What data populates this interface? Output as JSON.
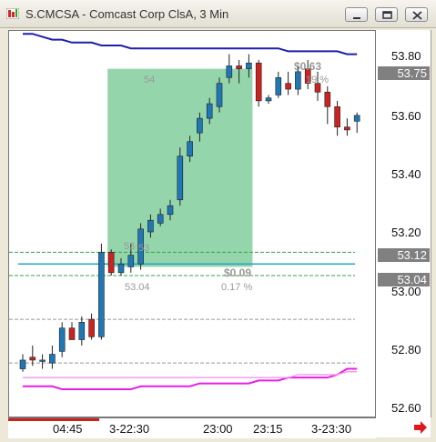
{
  "window": {
    "title": "S.CMCSA - Comcast Corp ClsA, 3 Min",
    "icon": "app-icon",
    "buttons": [
      "minimize-icon",
      "restore-icon",
      "close-icon"
    ]
  },
  "colors": {
    "up_candle": "#1f77b4",
    "down_candle": "#cc2222",
    "upper_band": "#1f1fa8",
    "lower_band": "#e61ee6",
    "lower_band_light": "#f3a0e8",
    "measure_box": "#8fd3a8",
    "price_tag_bg": "#808080",
    "hline_green": "#2aa84a",
    "hline_cyan": "#22a6c4"
  },
  "yaxis": {
    "labels": [
      "53.80",
      "53.60",
      "53.40",
      "53.20",
      "53.00",
      "52.80",
      "52.60"
    ],
    "tags": [
      "53.75",
      "53.12",
      "53.04"
    ]
  },
  "xaxis": {
    "labels": [
      "04:45",
      "3-22:30",
      "23:00",
      "23:15",
      "3-23:30"
    ]
  },
  "annotations": {
    "box_top": "54",
    "box_left_a": "53",
    "box_left_b": "53",
    "box_low": "53.04",
    "change_top": "$0.63",
    "pct_top": "19 %",
    "change_mid": "$0.09",
    "pct_mid": "0.17 %"
  },
  "chart_data": {
    "type": "candlestick",
    "title": "S.CMCSA - Comcast Corp ClsA, 3 Min",
    "ylim": [
      52.55,
      53.88
    ],
    "y_ticks": [
      53.8,
      53.6,
      53.4,
      53.2,
      53.0,
      52.8,
      52.6
    ],
    "x_ticks": [
      "04:45",
      "3-22:30",
      "23:00",
      "23:15",
      "3-23:30"
    ],
    "grid": false,
    "candles": [
      {
        "o": 52.72,
        "h": 52.77,
        "l": 52.71,
        "c": 52.75
      },
      {
        "o": 52.76,
        "h": 52.8,
        "l": 52.73,
        "c": 52.75
      },
      {
        "o": 52.75,
        "h": 52.77,
        "l": 52.72,
        "c": 52.75
      },
      {
        "o": 52.74,
        "h": 52.8,
        "l": 52.72,
        "c": 52.77
      },
      {
        "o": 52.78,
        "h": 52.88,
        "l": 52.76,
        "c": 52.86
      },
      {
        "o": 52.86,
        "h": 52.88,
        "l": 52.82,
        "c": 52.82
      },
      {
        "o": 52.82,
        "h": 52.9,
        "l": 52.8,
        "c": 52.88
      },
      {
        "o": 52.89,
        "h": 52.91,
        "l": 52.82,
        "c": 52.83
      },
      {
        "o": 52.83,
        "h": 53.15,
        "l": 52.82,
        "c": 53.12
      },
      {
        "o": 53.12,
        "h": 53.13,
        "l": 53.04,
        "c": 53.05
      },
      {
        "o": 53.05,
        "h": 53.1,
        "l": 53.04,
        "c": 53.08
      },
      {
        "o": 53.07,
        "h": 53.15,
        "l": 53.05,
        "c": 53.11
      },
      {
        "o": 53.08,
        "h": 53.22,
        "l": 53.06,
        "c": 53.2
      },
      {
        "o": 53.19,
        "h": 53.25,
        "l": 53.17,
        "c": 53.23
      },
      {
        "o": 53.22,
        "h": 53.27,
        "l": 53.21,
        "c": 53.25
      },
      {
        "o": 53.25,
        "h": 53.3,
        "l": 53.23,
        "c": 53.28
      },
      {
        "o": 53.3,
        "h": 53.48,
        "l": 53.28,
        "c": 53.45
      },
      {
        "o": 53.45,
        "h": 53.52,
        "l": 53.43,
        "c": 53.5
      },
      {
        "o": 53.53,
        "h": 53.6,
        "l": 53.5,
        "c": 53.58
      },
      {
        "o": 53.58,
        "h": 53.65,
        "l": 53.56,
        "c": 53.63
      },
      {
        "o": 53.62,
        "h": 53.72,
        "l": 53.6,
        "c": 53.7
      },
      {
        "o": 53.72,
        "h": 53.8,
        "l": 53.7,
        "c": 53.76
      },
      {
        "o": 53.76,
        "h": 53.78,
        "l": 53.7,
        "c": 53.75
      },
      {
        "o": 53.75,
        "h": 53.8,
        "l": 53.72,
        "c": 53.77
      },
      {
        "o": 53.77,
        "h": 53.78,
        "l": 53.62,
        "c": 53.64
      },
      {
        "o": 53.64,
        "h": 53.66,
        "l": 53.63,
        "c": 53.65
      },
      {
        "o": 53.66,
        "h": 53.74,
        "l": 53.65,
        "c": 53.72
      },
      {
        "o": 53.7,
        "h": 53.74,
        "l": 53.66,
        "c": 53.68
      },
      {
        "o": 53.68,
        "h": 53.76,
        "l": 53.66,
        "c": 53.74
      },
      {
        "o": 53.75,
        "h": 53.78,
        "l": 53.68,
        "c": 53.7
      },
      {
        "o": 53.7,
        "h": 53.74,
        "l": 53.64,
        "c": 53.67
      },
      {
        "o": 53.67,
        "h": 53.69,
        "l": 53.56,
        "c": 53.62
      },
      {
        "o": 53.62,
        "h": 53.64,
        "l": 53.52,
        "c": 53.55
      },
      {
        "o": 53.55,
        "h": 53.58,
        "l": 53.52,
        "c": 53.54
      },
      {
        "o": 53.57,
        "h": 53.6,
        "l": 53.53,
        "c": 53.59
      }
    ],
    "upper_band": [
      53.87,
      53.87,
      53.86,
      53.85,
      53.85,
      53.84,
      53.84,
      53.84,
      53.83,
      53.83,
      53.83,
      53.82,
      53.82,
      53.82,
      53.82,
      53.82,
      53.82,
      53.82,
      53.82,
      53.82,
      53.82,
      53.82,
      53.82,
      53.82,
      53.82,
      53.82,
      53.82,
      53.81,
      53.81,
      53.81,
      53.81,
      53.81,
      53.81,
      53.8,
      53.8
    ],
    "lower_band": [
      52.66,
      52.66,
      52.66,
      52.66,
      52.65,
      52.65,
      52.65,
      52.65,
      52.65,
      52.65,
      52.65,
      52.65,
      52.66,
      52.66,
      52.66,
      52.66,
      52.66,
      52.66,
      52.67,
      52.67,
      52.67,
      52.67,
      52.67,
      52.67,
      52.68,
      52.68,
      52.68,
      52.69,
      52.69,
      52.69,
      52.69,
      52.69,
      52.7,
      52.72,
      52.72
    ],
    "lower_band_light": [
      52.69,
      52.69,
      52.69,
      52.69,
      52.69,
      52.69,
      52.69,
      52.69,
      52.69,
      52.69,
      52.69,
      52.69,
      52.69,
      52.69,
      52.69,
      52.69,
      52.69,
      52.69,
      52.69,
      52.69,
      52.69,
      52.69,
      52.69,
      52.69,
      52.69,
      52.69,
      52.69,
      52.69,
      52.7,
      52.7,
      52.7,
      52.7,
      52.7,
      52.71,
      52.71
    ],
    "hlines": [
      53.12,
      53.08,
      53.04,
      52.89,
      52.74
    ],
    "measure_box": {
      "from_index": 9,
      "to_index": 23,
      "low": 53.07,
      "high": 53.75
    }
  }
}
